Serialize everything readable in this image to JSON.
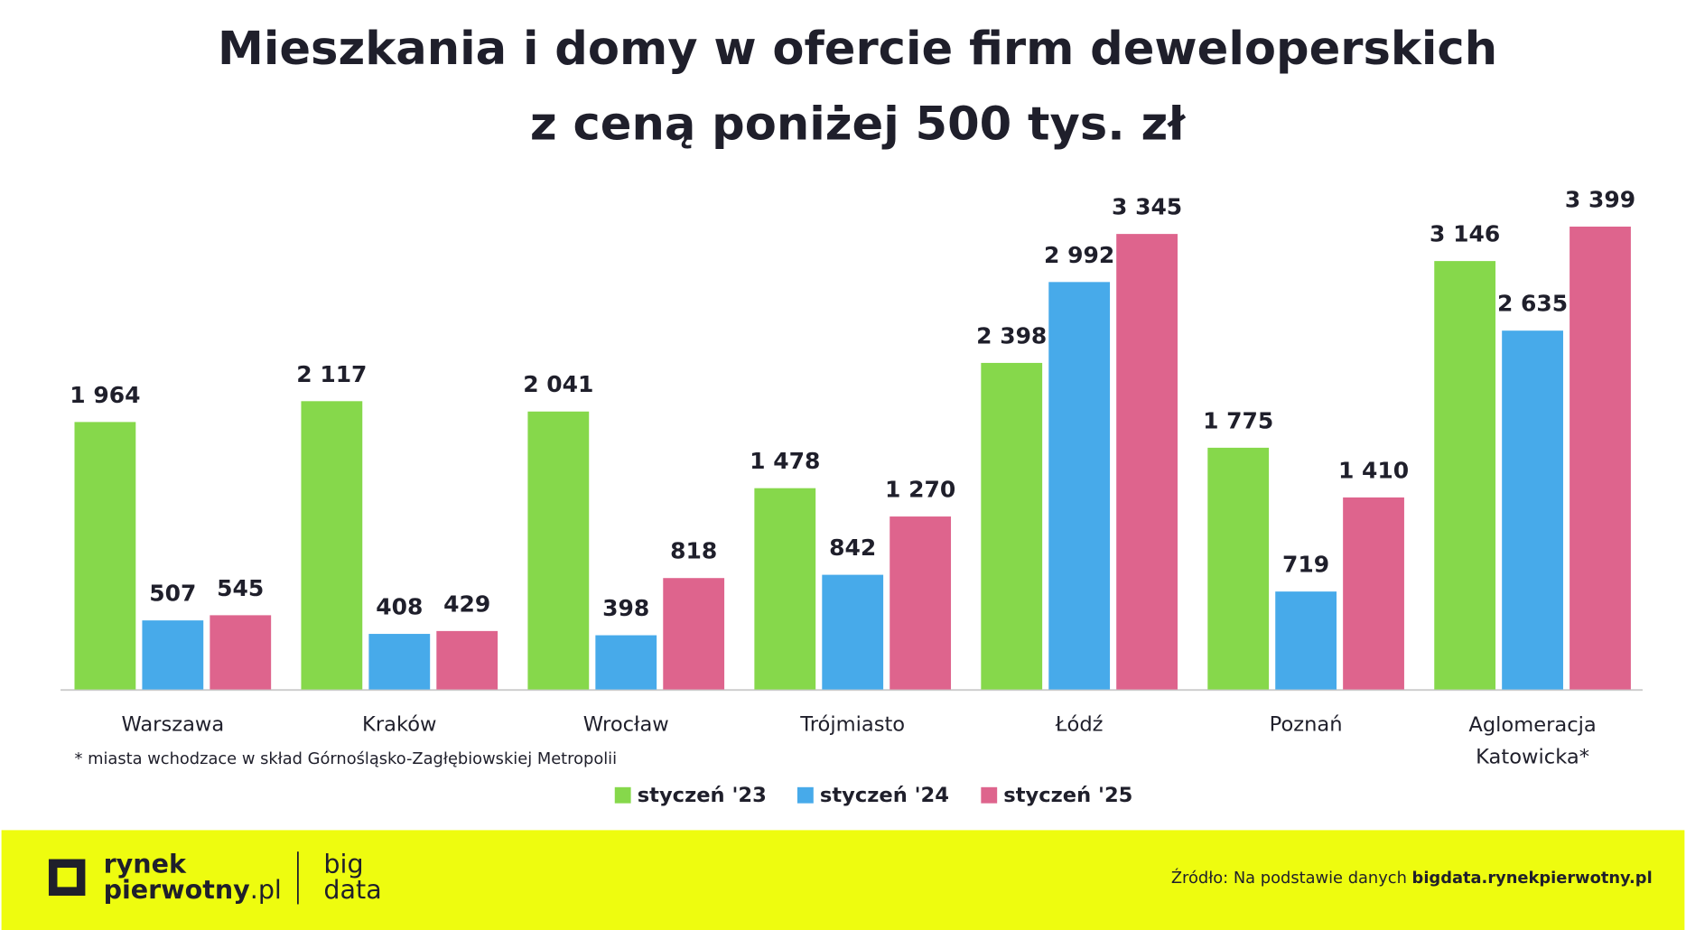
{
  "chart_data": {
    "type": "bar",
    "title": [
      "Mieszkania i domy w ofercie firm deweloperskich",
      "z ceną poniżej 500 tys. zł"
    ],
    "categories": [
      "Warszawa",
      "Kraków",
      "Wrocław",
      "Trójmiasto",
      "Łódź",
      "Poznań",
      "Aglomeracja Katowicka*"
    ],
    "series": [
      {
        "name": "styczeń '23",
        "color": "#86d84b",
        "values": [
          1964,
          2117,
          2041,
          1478,
          2398,
          1775,
          3146
        ],
        "value_labels": [
          "1 964",
          "2 117",
          "2 041",
          "1 478",
          "2 398",
          "1 775",
          "3 146"
        ]
      },
      {
        "name": "styczeń '24",
        "color": "#47aaea",
        "values": [
          507,
          408,
          398,
          842,
          2992,
          719,
          2635
        ],
        "value_labels": [
          "507",
          "408",
          "398",
          "842",
          "2 992",
          "719",
          "2 635"
        ]
      },
      {
        "name": "styczeń '25",
        "color": "#de648d",
        "values": [
          545,
          429,
          818,
          1270,
          3345,
          1410,
          3399
        ],
        "value_labels": [
          "545",
          "429",
          "818",
          "1 270",
          "3 345",
          "1 410",
          "3 399"
        ]
      }
    ],
    "footnote": "* miasta wchodzace w skład Górnośląsko-Zagłębiowskiej Metropolii"
  },
  "footer": {
    "logo_line1": "rynek",
    "logo_line2": "pierwotny",
    "logo_suffix": ".pl",
    "logo2_line1": "big",
    "logo2_line2": "data",
    "source_prefix": "Źródło: Na podstawie danych ",
    "source_link": "bigdata.rynekpierwotny.pl"
  }
}
